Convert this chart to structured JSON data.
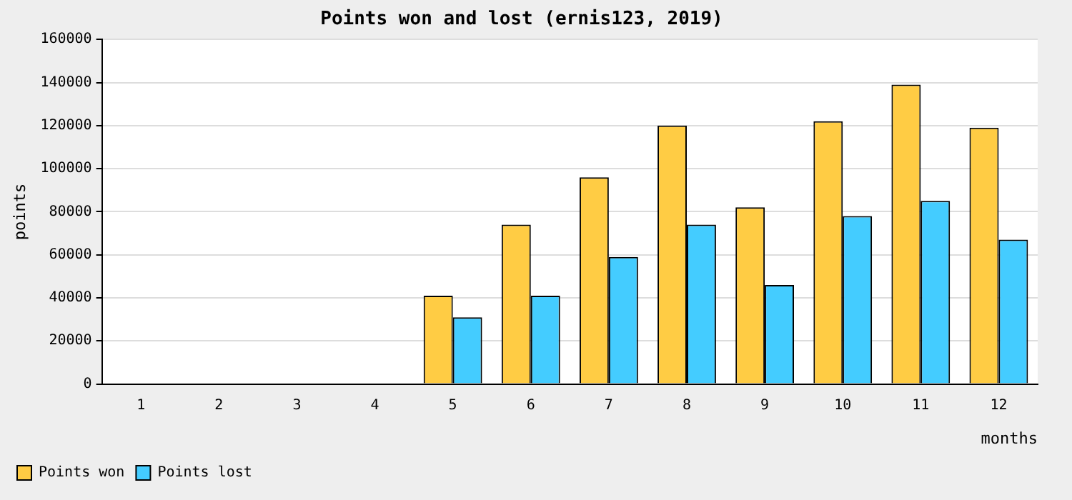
{
  "chart_data": {
    "type": "bar",
    "title": "Points won and lost (ernis123, 2019)",
    "xlabel": "months",
    "ylabel": "points",
    "categories": [
      "1",
      "2",
      "3",
      "4",
      "5",
      "6",
      "7",
      "8",
      "9",
      "10",
      "11",
      "12"
    ],
    "series": [
      {
        "name": "Points won",
        "color": "#ffcc44",
        "values": [
          0,
          0,
          0,
          0,
          41000,
          74000,
          96000,
          120000,
          82000,
          122000,
          139000,
          119000
        ]
      },
      {
        "name": "Points lost",
        "color": "#44ccff",
        "values": [
          0,
          0,
          0,
          0,
          31000,
          41000,
          59000,
          74000,
          46000,
          78000,
          85000,
          67000
        ]
      }
    ],
    "ylim": [
      0,
      160000
    ],
    "yticks": [
      0,
      20000,
      40000,
      60000,
      80000,
      100000,
      120000,
      140000,
      160000
    ],
    "grid": "y",
    "legend": "bottom left"
  }
}
